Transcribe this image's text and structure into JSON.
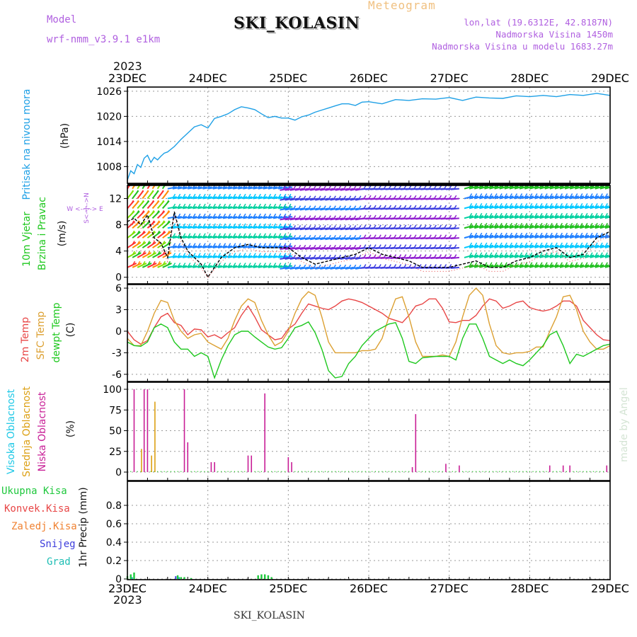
{
  "header": {
    "model_label": "Model",
    "model_name": "wrf-nmm_v3.9.1 e1km",
    "meteogram_label": "Meteogram",
    "station_title": "SKI_KOLASIN",
    "coords": "lon,lat (19.6312E, 42.8187N)",
    "elevation": "Nadmorska Visina 1450m",
    "model_elevation": "Nadmorska Visina u modelu 1683.27m"
  },
  "footer": {
    "station": "SKI_KOLASIN",
    "credit": "made by Angel"
  },
  "time_axis": {
    "year_top": "2023",
    "year_bottom": "2023",
    "ticks": [
      "23DEC",
      "24DEC",
      "25DEC",
      "26DEC",
      "27DEC",
      "28DEC",
      "29DEC"
    ]
  },
  "colors": {
    "pressure": "#1ea0e6",
    "temp2m": "#e84646",
    "sfc_temp": "#dca032",
    "dewpt": "#1ec81e",
    "high_cloud": "#1ec8e6",
    "mid_cloud": "#dca014",
    "low_cloud": "#c81e96",
    "total_precip": "#1ec83c",
    "conv_precip": "#e84646",
    "frz_precip": "#f08232",
    "snow": "#3c3cdc",
    "hail": "#1ebeb4"
  },
  "panels": {
    "pressure": {
      "label": "Pritisak na nivou mora",
      "unit": "(hPa)"
    },
    "wind": {
      "label_line1": "10m Vjetar",
      "label_line2": "Brzina i Pravac",
      "unit": "(m/s)",
      "compass_n": "N",
      "compass_s": "S",
      "compass_e": "E",
      "compass_w": "W",
      "compass_ns": "S<--|-->N",
      "compass_we": "W  <--|--> E"
    },
    "temperature": {
      "label_line1": "2m Temp",
      "label_line2": "SFC Temp",
      "label_line3": "dewpt Temp",
      "unit": "(C)"
    },
    "cloud": {
      "label_line1": "Visoka Oblacnost",
      "label_line2": "Srednja Oblacnost",
      "label_line3": "Niska Oblacnost",
      "unit": "(%)"
    },
    "precip": {
      "legend": [
        "Ukupna Kisa",
        "Konvek.Kisa",
        "Zaledj.Kisa",
        "Snijeg",
        "Grad"
      ],
      "unit": "1hr Precip (mm)"
    }
  },
  "chart_data": [
    {
      "type": "line",
      "panel": "pressure",
      "ylabel": "Pritisak na nivou mora (hPa)",
      "ylim": [
        1004,
        1027
      ],
      "yticks": [
        1008,
        1014,
        1020,
        1026
      ],
      "x_hours": [
        0,
        1,
        2,
        3,
        4,
        5,
        6,
        7,
        8,
        9,
        10,
        11,
        12,
        14,
        16,
        18,
        20,
        22,
        24,
        26,
        28,
        30,
        32,
        34,
        36,
        38,
        40,
        42,
        44,
        46,
        48,
        50,
        52,
        54,
        56,
        58,
        60,
        62,
        64,
        66,
        68,
        70,
        72,
        76,
        80,
        84,
        88,
        92,
        96,
        100,
        104,
        108,
        112,
        116,
        120,
        124,
        128,
        132,
        136,
        140,
        144
      ],
      "series": [
        {
          "values": [
            1004.8,
            1007,
            1006.3,
            1008.5,
            1007.8,
            1010,
            1010.7,
            1009,
            1010.2,
            1009.6,
            1010.5,
            1011.2,
            1011.5,
            1012.8,
            1014.5,
            1016,
            1017.5,
            1018,
            1017.2,
            1019.5,
            1020,
            1020.6,
            1021.6,
            1022.3,
            1022,
            1021.6,
            1020.6,
            1019.7,
            1020,
            1019.6,
            1019.6,
            1019.1,
            1019.9,
            1020.3,
            1021,
            1021.5,
            1022,
            1022.5,
            1023,
            1023,
            1022.6,
            1023.4,
            1023.5,
            1023,
            1024,
            1023.8,
            1024.2,
            1024.1,
            1024.5,
            1023.8,
            1024.6,
            1024.4,
            1024.3,
            1024.9,
            1024.7,
            1025.0,
            1024.7,
            1025.2,
            1025.0,
            1025.5,
            1025.0
          ]
        }
      ]
    },
    {
      "type": "line",
      "panel": "wind",
      "ylabel": "10m Vjetar Brzina i Pravac (m/s)",
      "ylim": [
        -1,
        14
      ],
      "yticks": [
        0,
        4,
        8,
        12
      ],
      "x_hours": [
        0,
        2,
        4,
        6,
        8,
        10,
        12,
        14,
        16,
        18,
        20,
        22,
        24,
        28,
        32,
        36,
        40,
        44,
        48,
        52,
        56,
        60,
        64,
        68,
        72,
        76,
        80,
        84,
        88,
        92,
        96,
        100,
        104,
        108,
        112,
        116,
        120,
        124,
        128,
        132,
        136,
        140,
        144
      ],
      "series": [
        {
          "values": [
            8.5,
            9,
            8,
            9.5,
            6,
            5.2,
            3,
            10,
            6,
            4,
            3,
            2,
            0,
            3,
            4.5,
            5,
            4.5,
            4.5,
            4.5,
            3,
            2,
            2.5,
            3,
            3.5,
            4.5,
            3.5,
            3,
            2.5,
            1.5,
            1.5,
            1.5,
            2,
            2.5,
            1.5,
            1.5,
            2.5,
            3,
            4,
            4.5,
            3,
            3.5,
            6,
            7
          ]
        }
      ]
    },
    {
      "type": "line",
      "panel": "temperature",
      "ylabel": "Temperature (C)",
      "ylim": [
        -7,
        6.5
      ],
      "yticks": [
        -6,
        -3,
        0,
        3,
        6
      ],
      "x_hours": [
        0,
        2,
        4,
        6,
        8,
        10,
        12,
        14,
        16,
        18,
        20,
        22,
        24,
        26,
        28,
        30,
        32,
        34,
        36,
        38,
        40,
        42,
        44,
        46,
        48,
        50,
        52,
        54,
        56,
        58,
        60,
        62,
        64,
        66,
        68,
        70,
        72,
        74,
        76,
        78,
        80,
        82,
        84,
        86,
        88,
        90,
        92,
        94,
        96,
        98,
        100,
        102,
        104,
        106,
        108,
        110,
        112,
        114,
        116,
        118,
        120,
        122,
        124,
        126,
        128,
        130,
        132,
        134,
        136,
        138,
        140,
        142,
        144
      ],
      "series": [
        {
          "name": "2m Temp",
          "values": [
            0,
            -1.2,
            -1.8,
            -1.3,
            0.5,
            2,
            2.5,
            1.2,
            0.8,
            -0.5,
            0.3,
            0.2,
            -0.8,
            -0.5,
            -1,
            -0.2,
            0.5,
            2.2,
            3.5,
            2,
            0.2,
            -0.5,
            -1.2,
            -1,
            0.3,
            1,
            2.5,
            3.8,
            3.5,
            3.2,
            3,
            3.5,
            4.2,
            4.5,
            4.3,
            4,
            3.5,
            3,
            2.5,
            1.8,
            1.5,
            1.2,
            2.2,
            3.5,
            3.8,
            4.5,
            4.5,
            3.2,
            1.3,
            1.2,
            1.5,
            1.5,
            2.2,
            3.5,
            4.5,
            4.2,
            3.2,
            3.5,
            4,
            4.2,
            3.3,
            3,
            2.8,
            3,
            3.5,
            4.2,
            4.2,
            3.5,
            1.5,
            0.5,
            -0.5,
            -1.2,
            -1.3
          ]
        },
        {
          "name": "SFC Temp",
          "values": [
            -1,
            -2,
            -2,
            0,
            2.5,
            4.3,
            4,
            1.5,
            0,
            -1,
            -0.5,
            -0.3,
            -1.5,
            -2,
            -2.5,
            -1,
            1.5,
            3.5,
            4.5,
            4,
            1.5,
            -0.5,
            -2,
            -1.5,
            0,
            2.5,
            4.5,
            5.5,
            5,
            2,
            -1.5,
            -3,
            -3,
            -3,
            -3,
            -2.7,
            -2.7,
            -2.5,
            -1,
            2,
            4.5,
            4.8,
            2,
            -1.5,
            -3.5,
            -3.5,
            -3.5,
            -3.3,
            -3.5,
            -1.5,
            2,
            5,
            6,
            5,
            1,
            -2,
            -3,
            -3.2,
            -3,
            -3,
            -2.8,
            -2.2,
            -2.2,
            0,
            2,
            4.8,
            5,
            3,
            0,
            -1.5,
            -2.5,
            -2.5,
            -2
          ]
        },
        {
          "name": "dewpt Temp",
          "values": [
            -1.5,
            -2,
            -2.1,
            -1.5,
            0.5,
            1,
            0.5,
            -1.5,
            -2.5,
            -2.5,
            -3.5,
            -3,
            -3.5,
            -6.5,
            -4,
            -2,
            -0.5,
            0,
            0,
            -0.8,
            -1.5,
            -2.2,
            -2.5,
            -2.3,
            -1,
            0.5,
            0.8,
            1.3,
            -0.2,
            -2.5,
            -5.5,
            -6.5,
            -6.3,
            -4.5,
            -3.5,
            -2,
            -1,
            0,
            0.5,
            1,
            1.2,
            -1,
            -4.2,
            -4.5,
            -3.7,
            -3.6,
            -3.5,
            -3.5,
            -3.5,
            -4,
            -1,
            1,
            1,
            -1,
            -3.5,
            -4,
            -4.5,
            -4,
            -4.5,
            -4.8,
            -4,
            -3,
            -2,
            -0.5,
            0,
            -2,
            -4.5,
            -3.2,
            -3.5,
            -3,
            -2.5,
            -2,
            -1.8
          ]
        }
      ]
    },
    {
      "type": "bar",
      "panel": "cloud",
      "ylabel": "Oblacnost (%)",
      "ylim": [
        0,
        100
      ],
      "yticks": [
        0,
        25,
        50,
        75,
        100
      ],
      "series": [
        {
          "name": "Niska Oblacnost",
          "x_hours": [
            2,
            5,
            6,
            17,
            18,
            25,
            26,
            36,
            37,
            41,
            48,
            49,
            85,
            86,
            95,
            99,
            126,
            130,
            132,
            143
          ],
          "values": [
            100,
            100,
            100,
            100,
            36,
            12,
            12,
            20,
            20,
            95,
            18,
            12,
            6,
            70,
            10,
            8,
            8,
            8,
            8,
            8
          ]
        },
        {
          "name": "Srednja Oblacnost",
          "x_hours": [
            4,
            7,
            8
          ],
          "values": [
            28,
            20,
            85
          ]
        },
        {
          "name": "Visoka Oblacnost",
          "x_hours": [],
          "values": []
        }
      ]
    },
    {
      "type": "bar",
      "panel": "precip",
      "ylabel": "1hr Precip (mm)",
      "ylim": [
        0,
        1.0
      ],
      "yticks": [
        0,
        0.2,
        0.4,
        0.6,
        0.8
      ],
      "series": [
        {
          "name": "Ukupna Kisa",
          "x_hours": [
            0,
            1,
            2,
            15,
            16,
            17,
            19,
            39,
            40,
            41,
            42,
            43
          ],
          "values": [
            0.03,
            0.05,
            0.07,
            0.04,
            0.02,
            0.02,
            0.01,
            0.04,
            0.05,
            0.05,
            0.04,
            0.02
          ]
        }
      ]
    }
  ]
}
